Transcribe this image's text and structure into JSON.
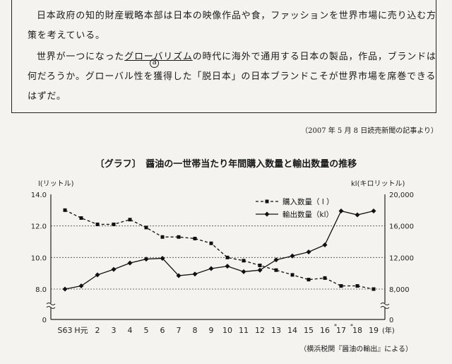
{
  "passage": {
    "p1": "日本政府の知的財産戦略本部は日本の映像作品や食，ファッションを世界市場に売り込む方策を考えている。",
    "p2_before": "世界が一つになった",
    "p2_underlined": "グローバリズム",
    "p2_note": "a",
    "p2_after": "の時代に海外で通用する日本の製品，作品，ブランドは何だろうか。グローバル性を獲得した「脱日本」の日本ブランドこそが世界市場を席巻できるはずだ。"
  },
  "source_top": "（2007 年 5 月 8 日読売新聞の記事より）",
  "chart_title": "〔グラフ〕　醤油の一世帯当たり年間購入数量と輸出数量の推移",
  "source_bottom": "（横浜税関『醤油の輸出』による）",
  "chart_data": {
    "type": "line",
    "title": "〔グラフ〕　醤油の一世帯当たり年間購入数量と輸出数量の推移",
    "categories": [
      "S63",
      "H元",
      "2",
      "3",
      "4",
      "5",
      "6",
      "7",
      "8",
      "9",
      "10",
      "11",
      "12",
      "13",
      "14",
      "15",
      "16",
      "17",
      "18",
      "19"
    ],
    "x_unit": "(年)",
    "note_marks": [
      "17",
      "18"
    ],
    "ylabel_left": "l(リットル)",
    "ylabel_right": "kl(キロリットル)",
    "left_ticks": [
      "14.0",
      "12.0",
      "10.0",
      "8.0",
      "0"
    ],
    "right_ticks": [
      "20,000",
      "16,000",
      "12,000",
      "8,000",
      "0"
    ],
    "ylim_left": [
      8.0,
      14.0
    ],
    "ylim_right": [
      8000,
      20000
    ],
    "axis_break": true,
    "grid": "dashed horizontal",
    "legend_position": "upper-right",
    "series": [
      {
        "name": "購入数量（ l ）",
        "axis": "left",
        "line_style": "dashed",
        "marker": "square",
        "values": [
          13.0,
          12.5,
          12.1,
          12.1,
          12.4,
          11.9,
          11.3,
          11.3,
          11.2,
          10.9,
          10.0,
          9.8,
          9.5,
          9.2,
          8.9,
          8.6,
          8.7,
          8.2,
          8.2,
          8.0
        ]
      },
      {
        "name": "輸出数量（kl）",
        "axis": "right",
        "line_style": "solid",
        "marker": "diamond",
        "values": [
          8000,
          8400,
          9800,
          10500,
          11300,
          11800,
          11900,
          9700,
          9900,
          10600,
          10900,
          10200,
          10400,
          11700,
          12200,
          12700,
          13600,
          17900,
          17400,
          17900
        ]
      }
    ]
  }
}
